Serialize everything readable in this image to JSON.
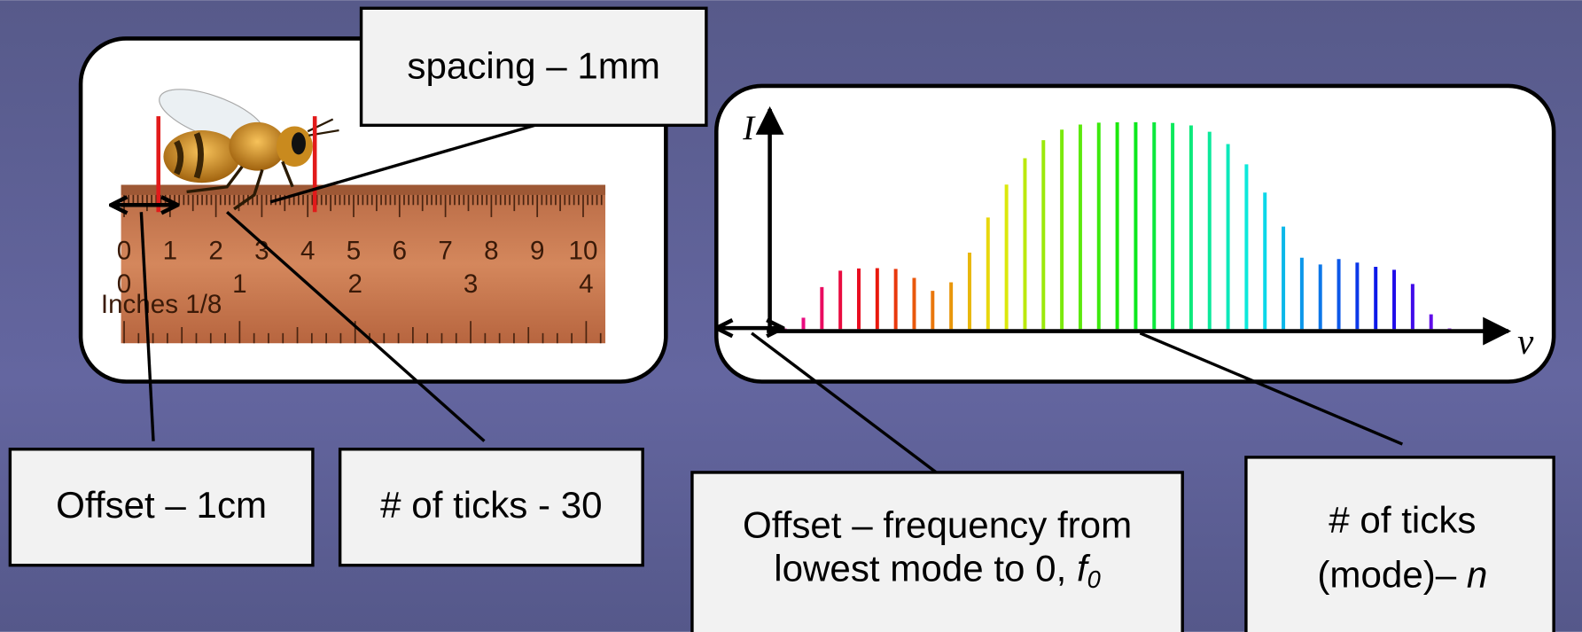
{
  "spacing_label": "spacing – 1mm",
  "offset_label": "Offset – 1cm",
  "ticks_label": "# of ticks - 30",
  "offset_freq": {
    "line1": "Offset – frequency from",
    "line2": "lowest mode to 0, ",
    "symbol": "f",
    "subscript": "0"
  },
  "mode_ticks": {
    "line1": "# of ticks",
    "line2": "(mode)– ",
    "symbol": "n"
  },
  "axes": {
    "y_label": "I",
    "x_label": "ν"
  },
  "ruler": {
    "cm_labels": [
      "0",
      "1",
      "2",
      "3",
      "4",
      "5",
      "6",
      "7",
      "8",
      "9",
      "10"
    ],
    "inch_labels": [
      "0",
      "1",
      "2",
      "3",
      "4"
    ],
    "caption": "Inches 1/8"
  }
}
